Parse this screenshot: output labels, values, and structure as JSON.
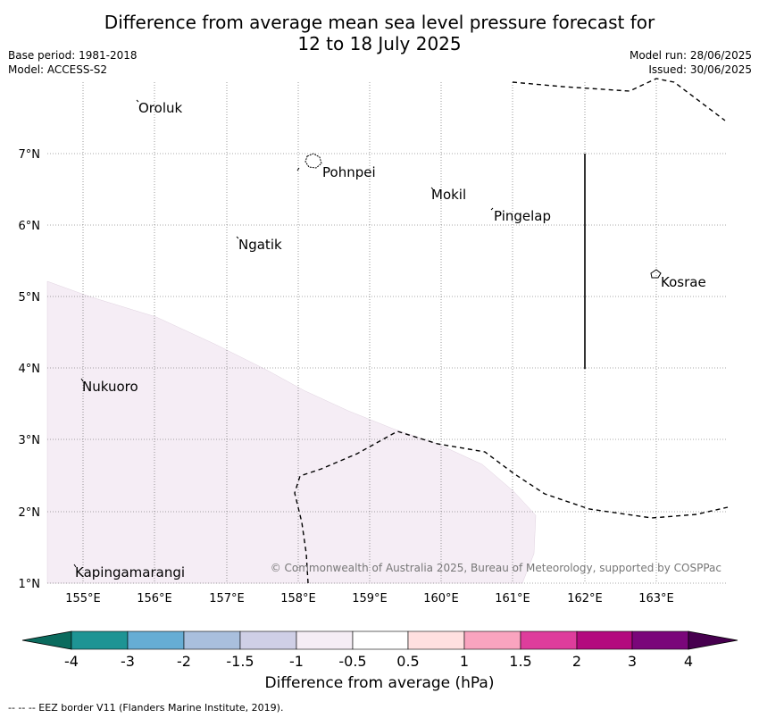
{
  "header": {
    "title_line1": "Difference from average mean sea level pressure forecast for",
    "title_line2": "12 to 18 July 2025",
    "base_period": "Base period: 1981-2018",
    "model": "Model: ACCESS-S2",
    "model_run": "Model run: 28/06/2025",
    "issued": "Issued: 30/06/2025"
  },
  "map": {
    "lat_ticks": [
      "7°N",
      "6°N",
      "5°N",
      "4°N",
      "3°N",
      "2°N",
      "1°N"
    ],
    "lon_ticks": [
      "155°E",
      "156°E",
      "157°E",
      "158°E",
      "159°E",
      "160°E",
      "161°E",
      "162°E",
      "163°E"
    ],
    "places": [
      "Oroluk",
      "Pohnpei",
      "Mokil",
      "Pingelap",
      "Ngatik",
      "Kosrae",
      "Nukuoro",
      "Kapingamarangi"
    ],
    "copyright": "© Commonwealth of Australia 2025, Bureau of Meteorology, supported by COSPPac",
    "shading_color": "#f5edf5"
  },
  "colorbar": {
    "labels": [
      "-4",
      "-3",
      "-2",
      "-1.5",
      "-1",
      "-0.5",
      "0.5",
      "1",
      "1.5",
      "2",
      "3",
      "4"
    ],
    "colors": [
      "#1e9494",
      "#66add4",
      "#a9bfdd",
      "#cfcfe6",
      "#f5edf5",
      "#ffffff",
      "#ffe0e0",
      "#f9a4bf",
      "#de3d9c",
      "#b30a7e",
      "#7a067a"
    ],
    "low_extend": "#0b6b5e",
    "high_extend": "#47004f",
    "label": "Difference from average (hPa)"
  },
  "legend": {
    "eez_text": "--  --  -- EEZ border V11 (Flanders Marine Institute, 2019)."
  }
}
